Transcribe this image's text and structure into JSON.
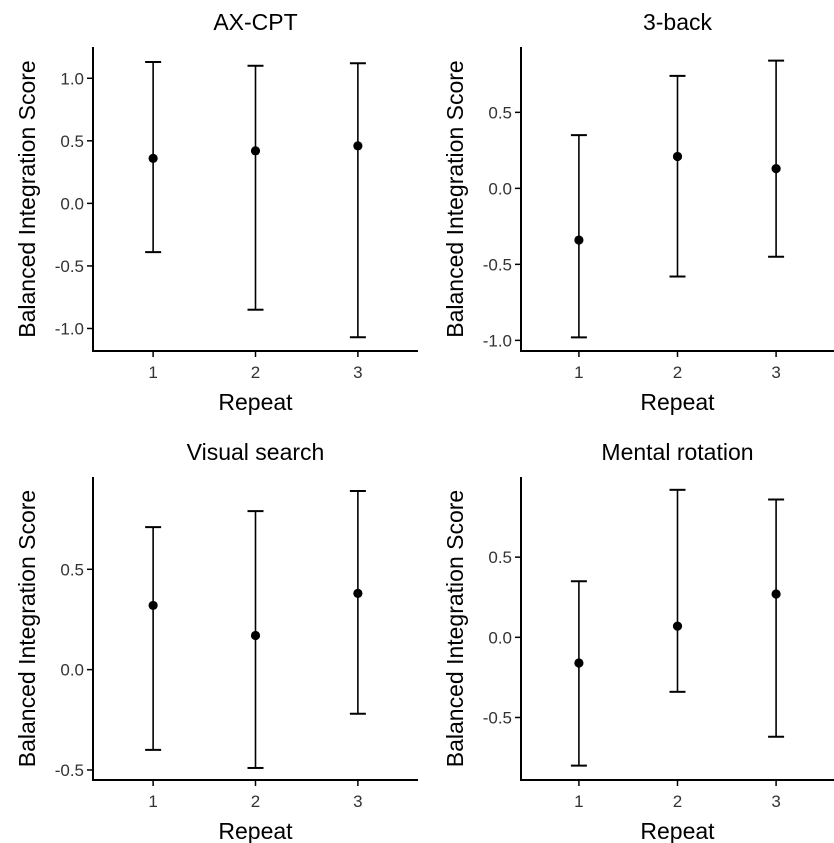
{
  "chart_data": [
    {
      "type": "errorbar",
      "title": "AX-CPT",
      "xlabel": "Repeat",
      "ylabel": "Balanced Integration Score",
      "categories": [
        "1",
        "2",
        "3"
      ],
      "y": [
        0.36,
        0.42,
        0.46
      ],
      "lower": [
        -0.39,
        -0.85,
        -1.07
      ],
      "upper": [
        1.13,
        1.1,
        1.12
      ],
      "yticks": [
        -1.0,
        -0.5,
        0.0,
        0.5,
        1.0
      ],
      "ytick_labels": [
        "-1.0",
        "-0.5",
        "0.0",
        "0.5",
        "1.0"
      ],
      "ylim": [
        -1.18,
        1.25
      ],
      "grid": false
    },
    {
      "type": "errorbar",
      "title": "3-back",
      "xlabel": "Repeat",
      "ylabel": "Balanced Integration Score",
      "categories": [
        "1",
        "2",
        "3"
      ],
      "y": [
        -0.34,
        0.21,
        0.13
      ],
      "lower": [
        -0.98,
        -0.58,
        -0.45
      ],
      "upper": [
        0.35,
        0.74,
        0.84
      ],
      "yticks": [
        -1.0,
        -0.5,
        0.0,
        0.5
      ],
      "ytick_labels": [
        "-1.0",
        "-0.5",
        "0.0",
        "0.5"
      ],
      "ylim": [
        -1.07,
        0.93
      ],
      "grid": false
    },
    {
      "type": "errorbar",
      "title": "Visual search",
      "xlabel": "Repeat",
      "ylabel": "Balanced Integration Score",
      "categories": [
        "1",
        "2",
        "3"
      ],
      "y": [
        0.32,
        0.17,
        0.38
      ],
      "lower": [
        -0.4,
        -0.49,
        -0.22
      ],
      "upper": [
        0.71,
        0.79,
        0.89
      ],
      "yticks": [
        -0.5,
        0.0,
        0.5
      ],
      "ytick_labels": [
        "-0.5",
        "0.0",
        "0.5"
      ],
      "ylim": [
        -0.55,
        0.96
      ],
      "grid": false
    },
    {
      "type": "errorbar",
      "title": "Mental rotation",
      "xlabel": "Repeat",
      "ylabel": "Balanced Integration Score",
      "categories": [
        "1",
        "2",
        "3"
      ],
      "y": [
        -0.16,
        0.07,
        0.27
      ],
      "lower": [
        -0.8,
        -0.34,
        -0.62
      ],
      "upper": [
        0.35,
        0.92,
        0.86
      ],
      "yticks": [
        -0.5,
        0.0,
        0.5
      ],
      "ytick_labels": [
        "-0.5",
        "0.0",
        "0.5"
      ],
      "ylim": [
        -0.89,
        1.0
      ],
      "grid": false
    }
  ]
}
